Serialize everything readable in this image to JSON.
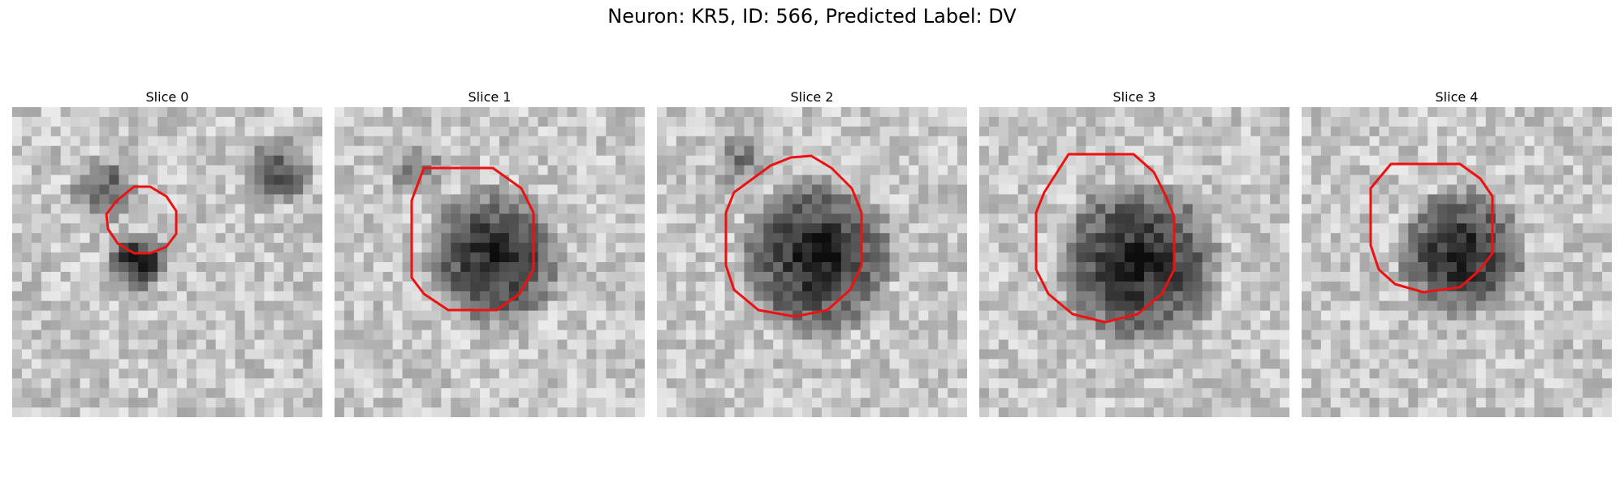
{
  "figure": {
    "title": "Neuron: KR5, ID: 566, Predicted Label: DV"
  },
  "panels": [
    {
      "title": "Slice 0"
    },
    {
      "title": "Slice 1"
    },
    {
      "title": "Slice 2"
    },
    {
      "title": "Slice 3"
    },
    {
      "title": "Slice 4"
    }
  ],
  "colors": {
    "contour": "#ee1111",
    "background": "#ffffff"
  }
}
